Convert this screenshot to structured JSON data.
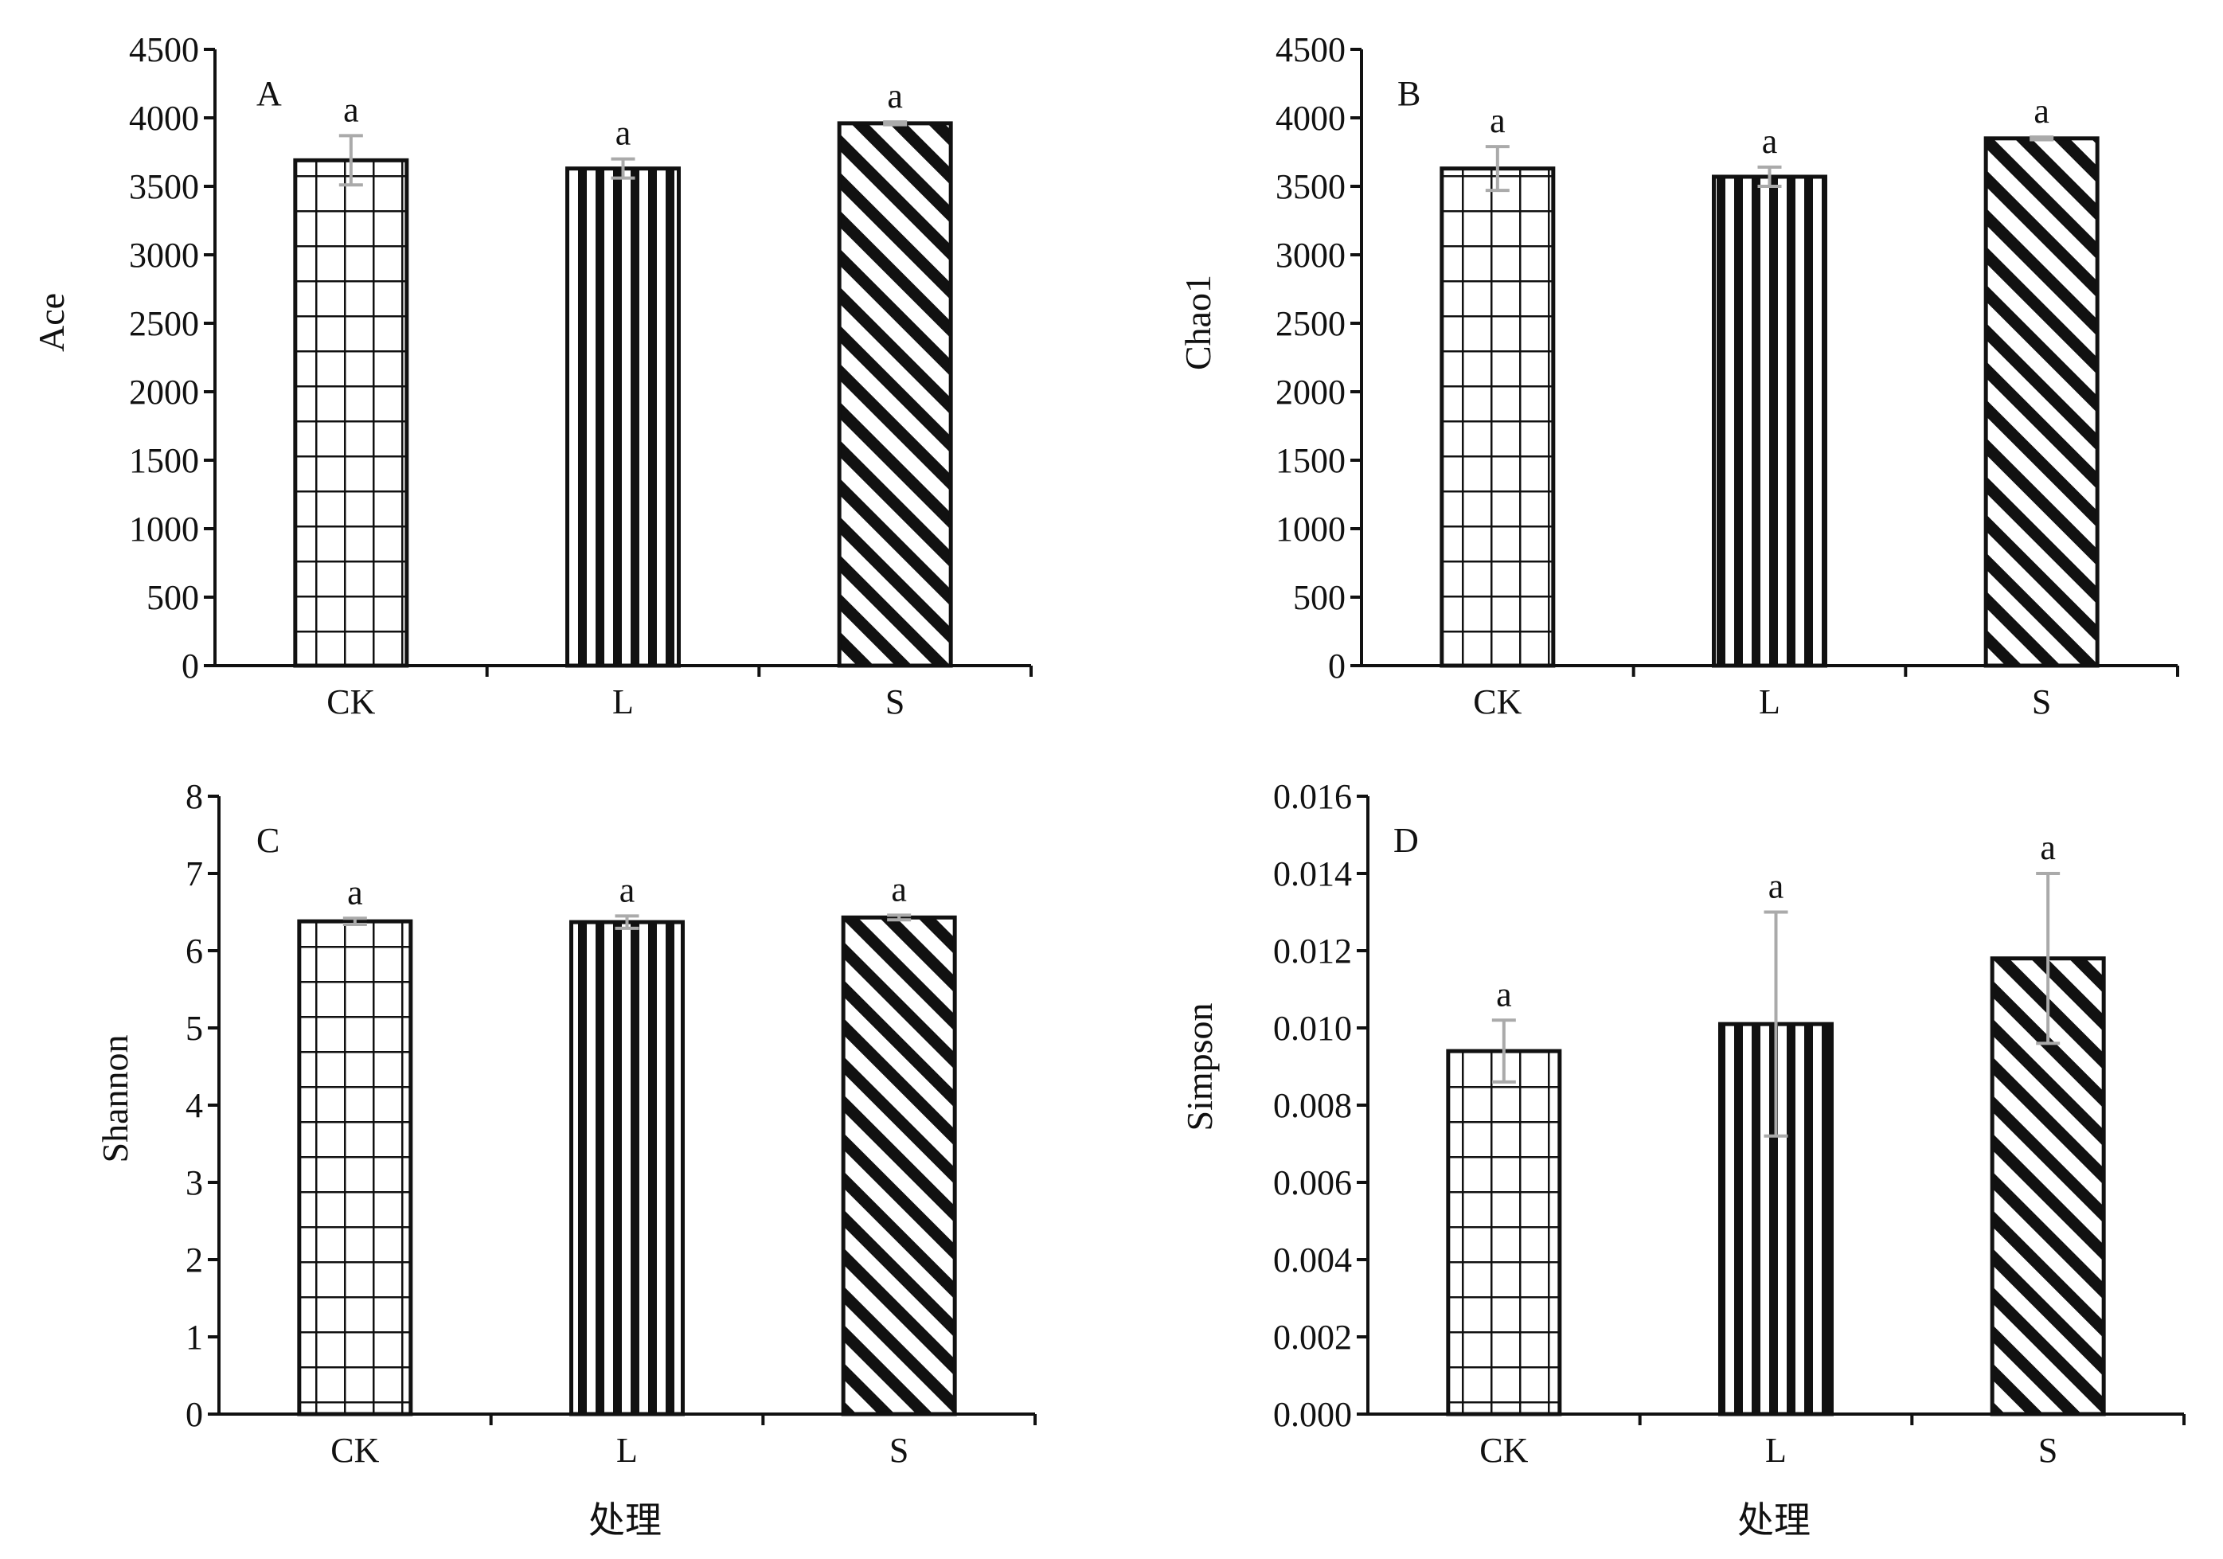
{
  "chart_data": [
    {
      "panel": "A",
      "type": "bar",
      "categories": [
        "CK",
        "L",
        "S"
      ],
      "values": [
        3690,
        3630,
        3960
      ],
      "errors": [
        180,
        70,
        10
      ],
      "significance": [
        "a",
        "a",
        "a"
      ],
      "ylabel": "Ace",
      "xlabel": "",
      "ylim": [
        0,
        4500
      ],
      "yticks": [
        "0",
        "500",
        "1000",
        "1500",
        "2000",
        "2500",
        "3000",
        "3500",
        "4000",
        "4500"
      ],
      "patterns": [
        "grid",
        "vertical",
        "diagonal"
      ]
    },
    {
      "panel": "B",
      "type": "bar",
      "categories": [
        "CK",
        "L",
        "S"
      ],
      "values": [
        3630,
        3570,
        3850
      ],
      "errors": [
        160,
        70,
        10
      ],
      "significance": [
        "a",
        "a",
        "a"
      ],
      "ylabel": "Chao1",
      "xlabel": "",
      "ylim": [
        0,
        4500
      ],
      "yticks": [
        "0",
        "500",
        "1000",
        "1500",
        "2000",
        "2500",
        "3000",
        "3500",
        "4000",
        "4500"
      ],
      "patterns": [
        "grid",
        "vertical",
        "diagonal"
      ]
    },
    {
      "panel": "C",
      "type": "bar",
      "categories": [
        "CK",
        "L",
        "S"
      ],
      "values": [
        6.38,
        6.37,
        6.43
      ],
      "errors": [
        0.04,
        0.08,
        0.03
      ],
      "significance": [
        "a",
        "a",
        "a"
      ],
      "ylabel": "Shannon",
      "xlabel": "处理",
      "ylim": [
        0,
        8
      ],
      "yticks": [
        "0",
        "1",
        "2",
        "3",
        "4",
        "5",
        "6",
        "7",
        "8"
      ],
      "patterns": [
        "grid",
        "vertical",
        "diagonal"
      ]
    },
    {
      "panel": "D",
      "type": "bar",
      "categories": [
        "CK",
        "L",
        "S"
      ],
      "values": [
        0.0094,
        0.0101,
        0.0118
      ],
      "errors": [
        0.0008,
        0.0029,
        0.0022
      ],
      "significance": [
        "a",
        "a",
        "a"
      ],
      "ylabel": "Simpson",
      "xlabel": "处理",
      "ylim": [
        0,
        0.016
      ],
      "yticks": [
        "0.000",
        "0.002",
        "0.004",
        "0.006",
        "0.008",
        "0.010",
        "0.012",
        "0.014",
        "0.016"
      ],
      "patterns": [
        "grid",
        "vertical",
        "diagonal"
      ]
    }
  ],
  "colors": {
    "ink": "#111111",
    "bar_fill": "#ffffff",
    "error_bar": "#aaaaaa"
  }
}
